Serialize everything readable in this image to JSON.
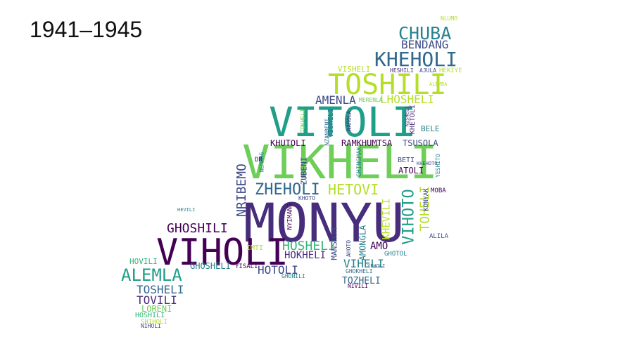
{
  "title": "1941–1945",
  "colors": {
    "dark_purple": "#440154",
    "purple": "#482878",
    "indigo": "#3e4a89",
    "blue": "#31688e",
    "teal": "#26828e",
    "sea": "#1f9e89",
    "green": "#35b779",
    "light_green": "#6ece58",
    "lime": "#b5de2b"
  },
  "words": {
    "w01": "MONYU",
    "w02": "VIKHELI",
    "w03": "VITOLI",
    "w04": "VIHOLI",
    "w05": "TOSHILI",
    "w06": "KHEHOLI",
    "w07": "CHUBA",
    "w08": "BENDANG",
    "w09": "ALEMLA",
    "w10": "GHOSHILI",
    "w11": "ZHEHOLI",
    "w12": "HETOVI",
    "w13": "HOSHELI",
    "w14": "VIHOTO",
    "w15": "TOHELI",
    "w16": "AMENLA",
    "w17": "LHOSHELI",
    "w18": "NRIBEMO",
    "w19": "TOSHELI",
    "w20": "TOVILI",
    "w21": "HOTOLI",
    "w22": "HOKHELI",
    "w23": "VIHELI",
    "w24": "TOZHELI",
    "w25": "AMO",
    "w26": "KHUTOLI",
    "w27": "RAMKHUMTSA",
    "w28": "TSUSOLA",
    "w29": "VISHELI",
    "w30": "LORENI",
    "w31": "HOVILI",
    "w32": "GHOSHELI",
    "w33": "AMONGLA",
    "w34": "MANSHOM",
    "w35": "ZUBENI",
    "w36": "KHEVILI",
    "w37": "ATOLI",
    "w38": "BETI",
    "w39": "BELE",
    "w40": "KONYAK",
    "w41": "MOBA",
    "w42": "ALILA",
    "w43": "HOSHILI",
    "w44": "SHIHOLI",
    "w45": "NIHOLI",
    "w46": "IMTI",
    "w47": "YISALI",
    "w48": "GHONILI",
    "w49": "GHOTOL",
    "w50": "NIVILI",
    "w51": "NYIMANG",
    "w52": "TOKHELI",
    "w53": "KHETOLI",
    "w54": "HEKIYE",
    "w55": "NEMANG",
    "w56": "DR",
    "w57": "VISHILI",
    "w58": "NZANBENI",
    "w59": "KHOTO",
    "w60": "HEVILI",
    "w61": "NLUMO",
    "w62": "AHOTO",
    "w63": "MERENLA",
    "w64": "YEHOLI",
    "w65": "HESHILI",
    "w66": "AJULA",
    "w67": "KHEHOTO",
    "w68": "NAROLA",
    "w69": "NISHELI",
    "w70": "YESHITO",
    "w71": "CHINGMAK",
    "w72": "ALEMBA",
    "w73": "GHOKHELI"
  }
}
